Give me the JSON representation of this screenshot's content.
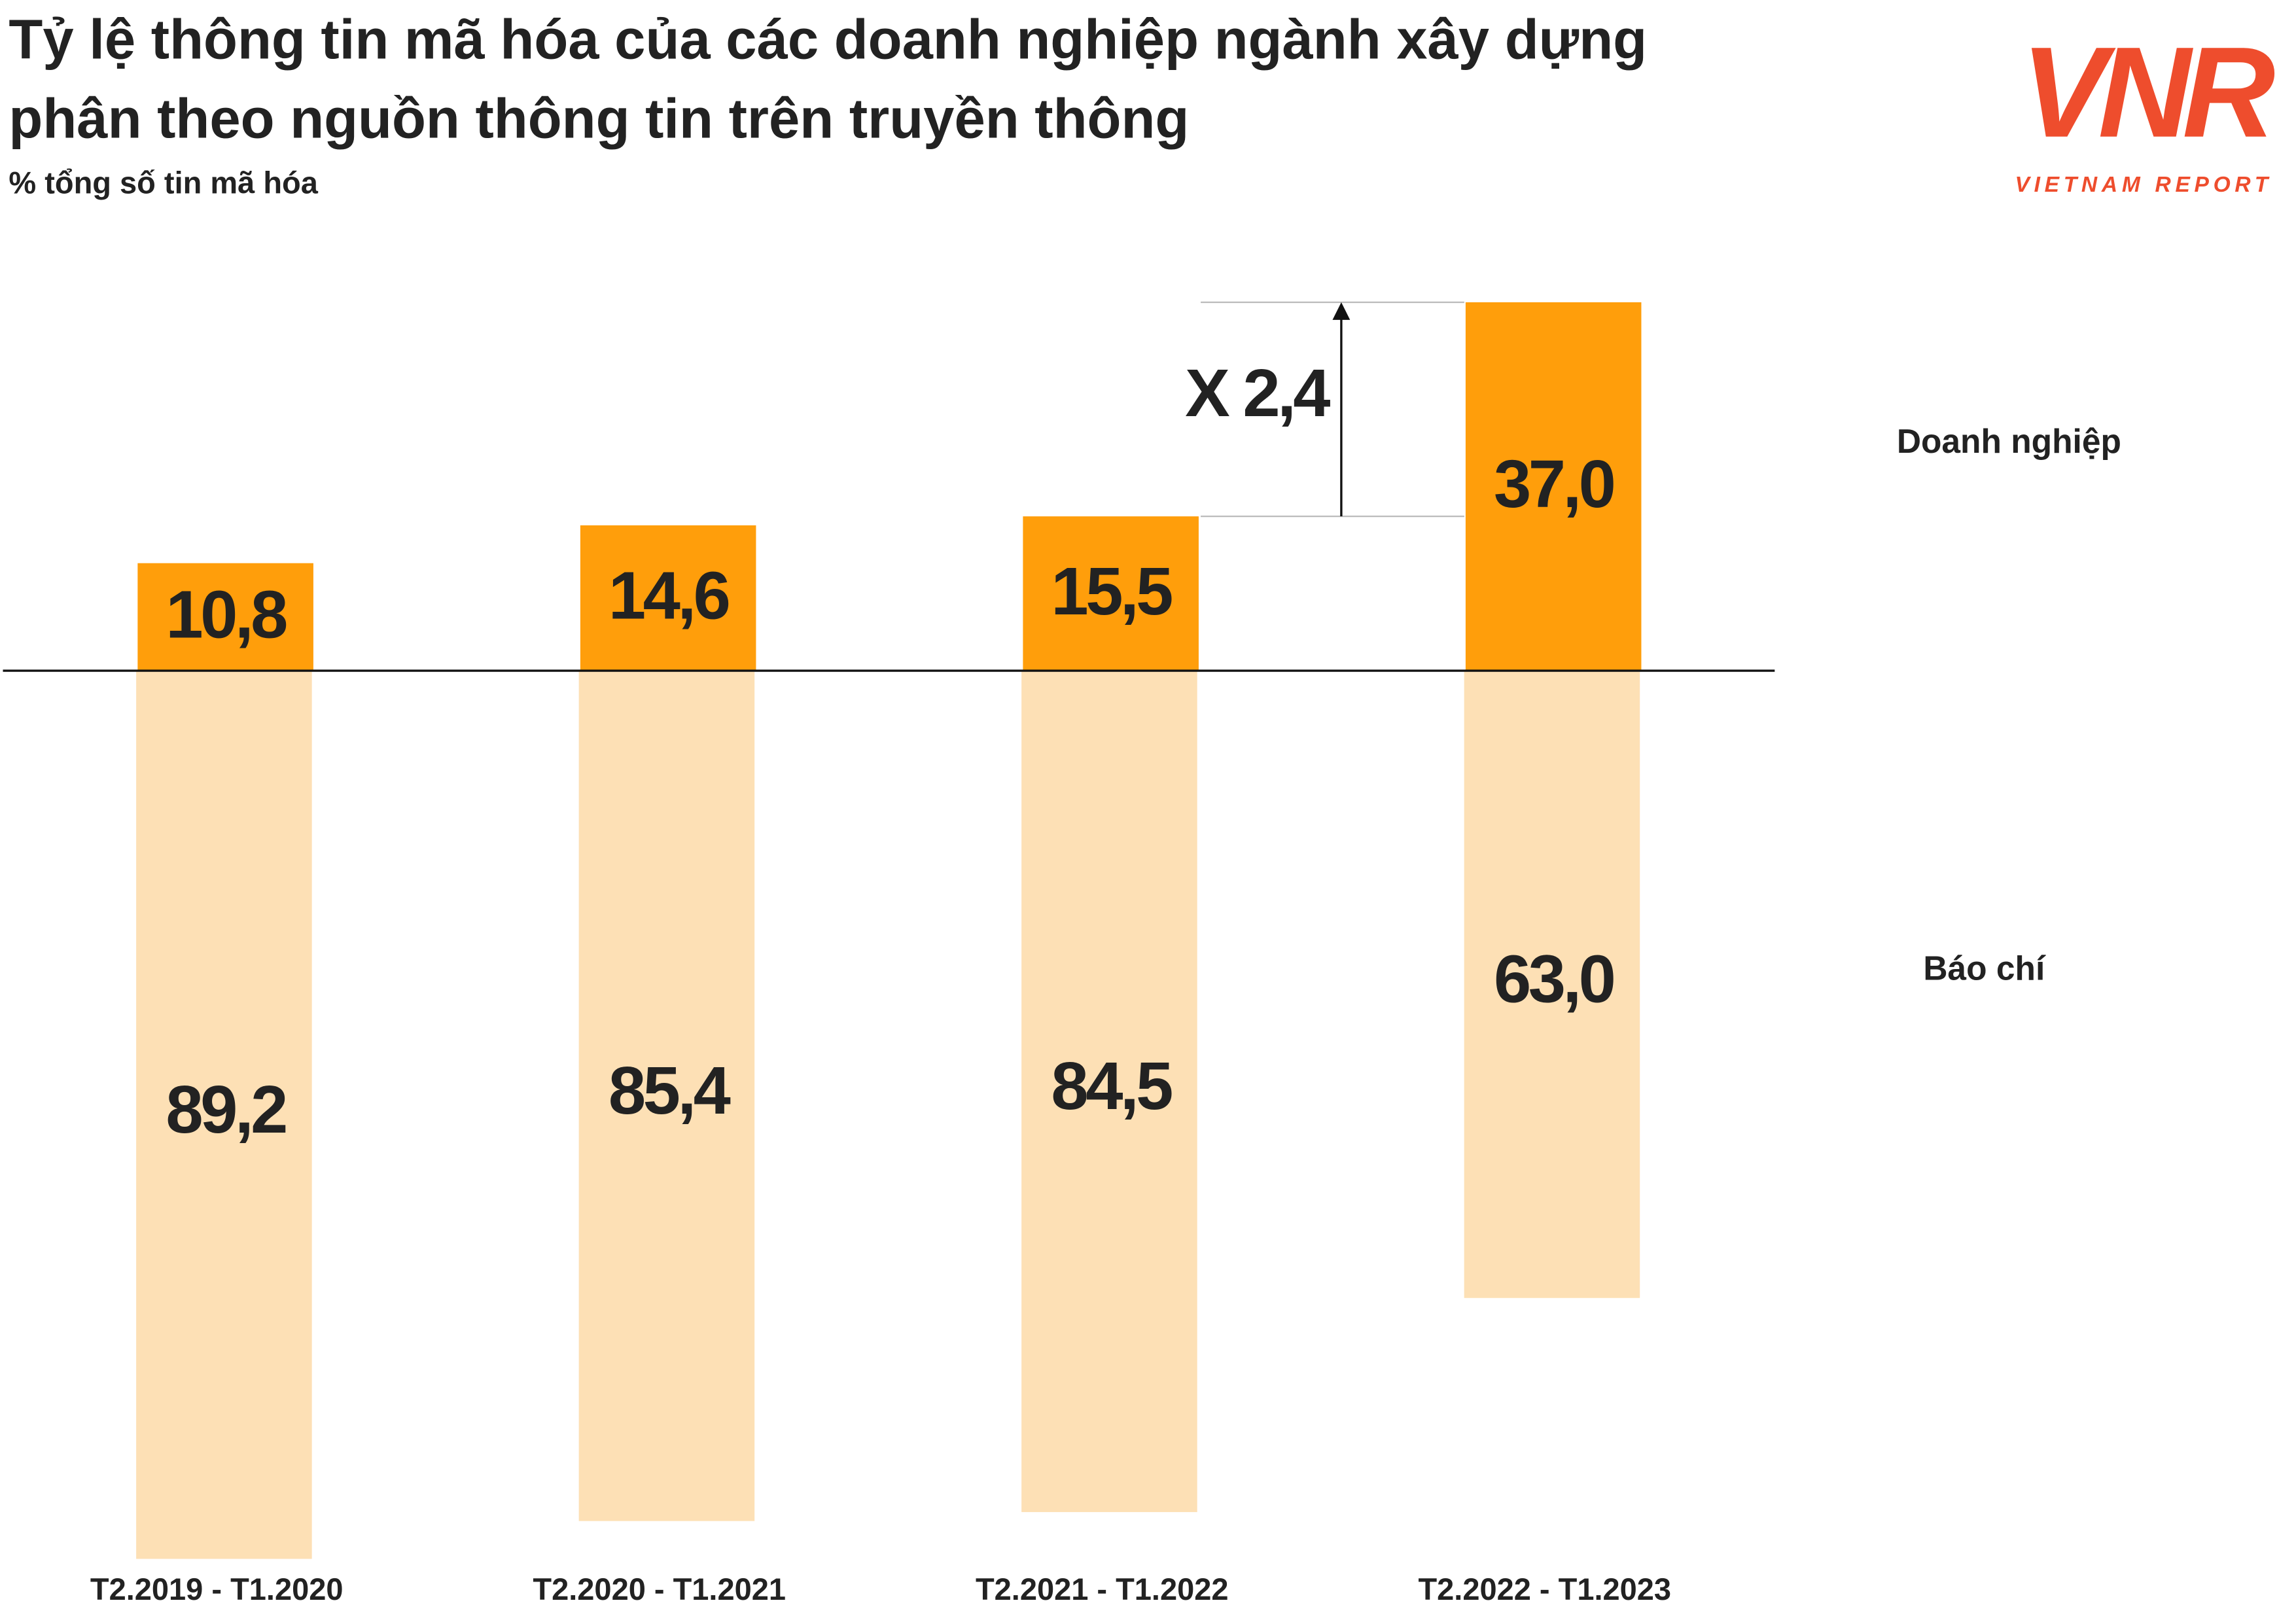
{
  "chart_data": {
    "type": "bar",
    "title": [
      "Tỷ lệ thông tin mã hóa của các doanh nghiệp ngành xây dựng",
      "phân theo nguồn thông tin trên truyền thông"
    ],
    "subtitle": "% tổng số tin mã hóa",
    "categories": [
      "T2.2019 - T1.2020",
      "T2.2020 - T1.2021",
      "T2.2021 - T1.2022",
      "T2.2022 - T1.2023"
    ],
    "series": [
      {
        "name": "Doanh nghiệp",
        "color": "#ff9e0b",
        "values": [
          10.8,
          14.6,
          15.5,
          37.0
        ],
        "value_labels": [
          "10,8",
          "14,6",
          "15,5",
          "37,0"
        ]
      },
      {
        "name": "Báo chí",
        "color": "#fde0b5",
        "values": [
          89.2,
          85.4,
          84.5,
          63.0
        ],
        "value_labels": [
          "89,2",
          "85,4",
          "84,5",
          "63,0"
        ]
      }
    ],
    "annotation": "X 2,4",
    "logo": {
      "text": "VNR",
      "caption": "VIETNAM REPORT"
    }
  }
}
